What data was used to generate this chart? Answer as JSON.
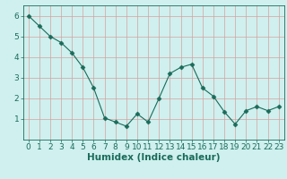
{
  "x": [
    0,
    1,
    2,
    3,
    4,
    5,
    6,
    7,
    8,
    9,
    10,
    11,
    12,
    13,
    14,
    15,
    16,
    17,
    18,
    19,
    20,
    21,
    22,
    23
  ],
  "y": [
    6.0,
    5.5,
    5.0,
    4.7,
    4.2,
    3.5,
    2.5,
    1.05,
    0.85,
    0.65,
    1.25,
    0.85,
    2.0,
    3.2,
    3.5,
    3.65,
    2.5,
    2.1,
    1.35,
    0.75,
    1.4,
    1.6,
    1.4,
    1.6
  ],
  "line_color": "#1a6b5a",
  "marker": "D",
  "marker_size": 2.5,
  "bg_color": "#cff0ee",
  "grid_color": "#d4a0a0",
  "xlabel": "Humidex (Indice chaleur)",
  "xlim": [
    -0.5,
    23.5
  ],
  "ylim": [
    0,
    6.5
  ],
  "yticks": [
    1,
    2,
    3,
    4,
    5,
    6
  ],
  "xticks": [
    0,
    1,
    2,
    3,
    4,
    5,
    6,
    7,
    8,
    9,
    10,
    11,
    12,
    13,
    14,
    15,
    16,
    17,
    18,
    19,
    20,
    21,
    22,
    23
  ],
  "tick_label_size": 6.5,
  "xlabel_size": 7.5,
  "xlabel_fontweight": "bold"
}
